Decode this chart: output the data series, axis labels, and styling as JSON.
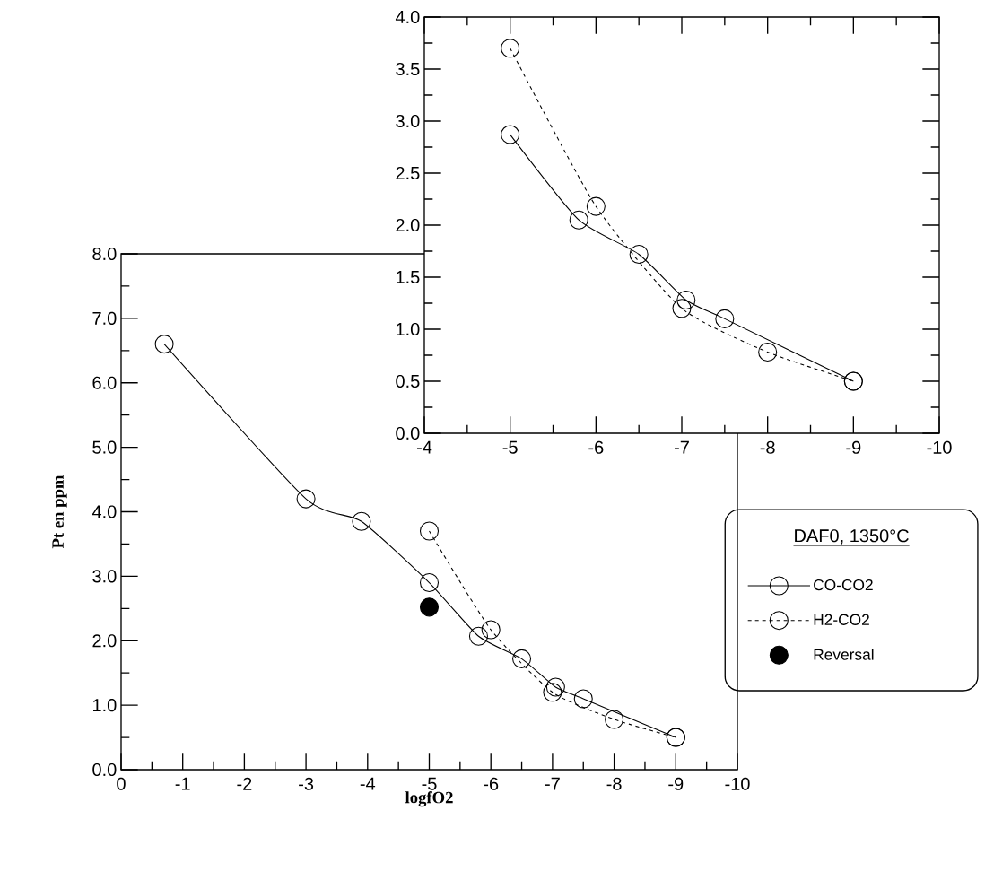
{
  "chart_data": [
    {
      "type": "line",
      "xlabel": "logfO2",
      "ylabel": "Pt en ppm",
      "legend_title": "DAF0, 1350°C",
      "legend": "right",
      "xlim": [
        0,
        -10
      ],
      "xticks": [
        0,
        -1,
        -2,
        -3,
        -4,
        -5,
        -6,
        -7,
        -8,
        -9,
        -10
      ],
      "ylim": [
        0,
        8
      ],
      "yticks": [
        {
          "value": 0,
          "label": "0.0"
        },
        {
          "value": 1,
          "label": "1.0"
        },
        {
          "value": 2,
          "label": "2.0"
        },
        {
          "value": 3,
          "label": "3.0"
        },
        {
          "value": 4,
          "label": "4.0"
        },
        {
          "value": 5,
          "label": "5.0"
        },
        {
          "value": 6,
          "label": "6.0"
        },
        {
          "value": 7,
          "label": "7.0"
        },
        {
          "value": 8,
          "label": "8.0"
        }
      ],
      "series": [
        {
          "name": "CO-CO2",
          "color": "#000000",
          "marker": "circle",
          "line_style": "solid",
          "x": [
            -0.7,
            -3,
            -3.9,
            -5,
            -5.8,
            -6.5,
            -7.05,
            -7.5,
            -9
          ],
          "values": [
            6.6,
            4.2,
            3.85,
            2.9,
            2.07,
            1.72,
            1.28,
            1.1,
            0.5
          ]
        },
        {
          "name": "H2-CO2",
          "color": "#000000",
          "marker": "circle",
          "line_style": "dashed",
          "x": [
            -5,
            -6,
            -7,
            -8,
            -9
          ],
          "values": [
            3.7,
            2.17,
            1.2,
            0.78,
            0.5
          ]
        },
        {
          "name": "Reversal",
          "type": "scatter",
          "color": "#000000",
          "marker": "circle",
          "x": [
            -5
          ],
          "values": [
            2.52
          ]
        }
      ]
    },
    {
      "type": "line",
      "xlim": [
        -4,
        -10
      ],
      "xticks": [
        -4,
        -5,
        -6,
        -7,
        -8,
        -9,
        -10
      ],
      "ylim": [
        0,
        4
      ],
      "yticks": [
        {
          "value": 0,
          "label": "0.0"
        },
        {
          "value": 0.5,
          "label": "0.5"
        },
        {
          "value": 1,
          "label": "1.0"
        },
        {
          "value": 1.5,
          "label": "1.5"
        },
        {
          "value": 2,
          "label": "2.0"
        },
        {
          "value": 2.5,
          "label": "2.5"
        },
        {
          "value": 3,
          "label": "3.0"
        },
        {
          "value": 3.5,
          "label": "3.5"
        },
        {
          "value": 4,
          "label": "4.0"
        }
      ],
      "series": [
        {
          "color": "#000000",
          "marker": "circle",
          "line_style": "solid",
          "x": [
            -5,
            -5.8,
            -6.5,
            -7.05,
            -7.5,
            -9
          ],
          "values": [
            2.87,
            2.05,
            1.72,
            1.28,
            1.1,
            0.5
          ]
        },
        {
          "color": "#000000",
          "marker": "circle",
          "line_style": "dashed",
          "x": [
            -5,
            -6,
            -7,
            -8,
            -9
          ],
          "values": [
            3.7,
            2.18,
            1.2,
            0.78,
            0.5
          ]
        }
      ]
    }
  ]
}
